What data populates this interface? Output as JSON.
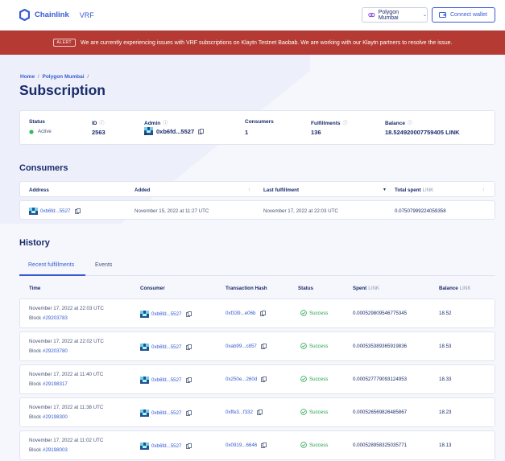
{
  "header": {
    "brand": "Chainlink",
    "product": "VRF",
    "network_button": "Polygon Mumbai",
    "connect_button": "Connect wallet"
  },
  "alert": {
    "tag": "ALERT",
    "message": "We are currently experiencing issues with VRF subscriptions on Klaytn Testnet Baobab. We are working with our Klaytn partners to resolve the issue."
  },
  "breadcrumb": {
    "home": "Home",
    "network": "Polygon Mumbai",
    "sep": "/"
  },
  "page_title": "Subscription",
  "summary": {
    "status_label": "Status",
    "status_value": "Active",
    "id_label": "ID",
    "id_value": "2563",
    "admin_label": "Admin",
    "admin_value": "0xb6fd...5527",
    "consumers_label": "Consumers",
    "consumers_value": "1",
    "fulfillments_label": "Fulfillments",
    "fulfillments_value": "136",
    "balance_label": "Balance",
    "balance_value": "18.524920007759405 LINK"
  },
  "consumers": {
    "title": "Consumers",
    "columns": {
      "address": "Address",
      "added": "Added",
      "last": "Last fulfillment",
      "spent": "Total spent",
      "spent_unit": "LINK"
    },
    "row": {
      "address": "0xb6fd...5527",
      "added": "November 15, 2022 at 11:27 UTC",
      "last": "November 17, 2022 at 22:03 UTC",
      "spent": "0.07507999224059358"
    }
  },
  "history": {
    "title": "History",
    "tabs": [
      "Recent fulfillments",
      "Events"
    ],
    "columns": {
      "time": "Time",
      "consumer": "Consumer",
      "tx": "Transaction Hash",
      "status": "Status",
      "spent": "Spent",
      "spent_unit": "LINK",
      "balance": "Balance",
      "balance_unit": "LINK"
    },
    "block_label": "Block",
    "rows": [
      {
        "time": "November 17, 2022 at 22:03 UTC",
        "block": "#29203783",
        "consumer": "0xb6fd...5527",
        "tx": "0xf339...e06b",
        "status": "Success",
        "spent": "0.000529809546775345",
        "balance": "18.52"
      },
      {
        "time": "November 17, 2022 at 22:02 UTC",
        "block": "#29203780",
        "consumer": "0xb6fd...5527",
        "tx": "0xab99...c857",
        "status": "Success",
        "spent": "0.000535389365919836",
        "balance": "18.53"
      },
      {
        "time": "November 17, 2022 at 11:40 UTC",
        "block": "#29198317",
        "consumer": "0xb6fd...5527",
        "tx": "0x250e...260d",
        "status": "Success",
        "spent": "0.000527779093124953",
        "balance": "18.33"
      },
      {
        "time": "November 17, 2022 at 11:38 UTC",
        "block": "#29198300",
        "consumer": "0xb6fd...5527",
        "tx": "0xffe3...f332",
        "status": "Success",
        "spent": "0.000526569826485867",
        "balance": "18.23"
      },
      {
        "time": "November 17, 2022 at 11:02 UTC",
        "block": "#29198003",
        "consumer": "0xb6fd...5527",
        "tx": "0x0919...6646",
        "status": "Success",
        "spent": "0.000528958325035771",
        "balance": "18.13"
      }
    ]
  },
  "colors": {
    "brand_blue": "#375bd2",
    "navy": "#1a2b6b",
    "alert_red": "#b53a33",
    "success_green": "#23a24c"
  }
}
